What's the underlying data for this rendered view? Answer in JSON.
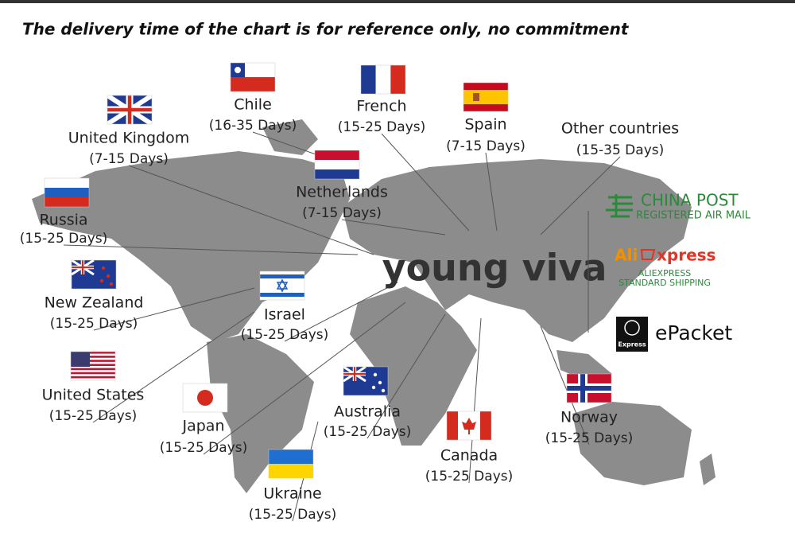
{
  "title": "The delivery time of the chart is for reference only, no commitment",
  "brand": "young viva",
  "countries": [
    {
      "name": "United Kingdom",
      "days": "(7-15 Days)"
    },
    {
      "name": "Chile",
      "days": "(16-35 Days)"
    },
    {
      "name": "French",
      "days": "(15-25 Days)"
    },
    {
      "name": "Spain",
      "days": "(7-15 Days)"
    },
    {
      "name": "Other countries",
      "days": "(15-35 Days)"
    },
    {
      "name": "Netherlands",
      "days": "(7-15 Days)"
    },
    {
      "name": "Russia",
      "days": "(15-25 Days)"
    },
    {
      "name": "New Zealand",
      "days": "(15-25 Days)"
    },
    {
      "name": "Israel",
      "days": "(15-25 Days)"
    },
    {
      "name": "United States",
      "days": "(15-25 Days)"
    },
    {
      "name": "Japan",
      "days": "(15-25 Days)"
    },
    {
      "name": "Australia",
      "days": "(15-25 Days)"
    },
    {
      "name": "Ukraine",
      "days": "(15-25 Days)"
    },
    {
      "name": "Canada",
      "days": "(15-25 Days)"
    },
    {
      "name": "Norway",
      "days": "(15-25 Days)"
    }
  ],
  "carriers": {
    "china_post": {
      "name": "CHINA POST",
      "service": "REGISTERED AIR MAIL"
    },
    "aliexpress": {
      "logo_prefix": "Ali",
      "logo_suffix": "xpress",
      "name": "ALIEXPRESS",
      "service": "STANDARD SHIPPING"
    },
    "epacket": {
      "name": "ePacket",
      "badge": "Express"
    }
  }
}
